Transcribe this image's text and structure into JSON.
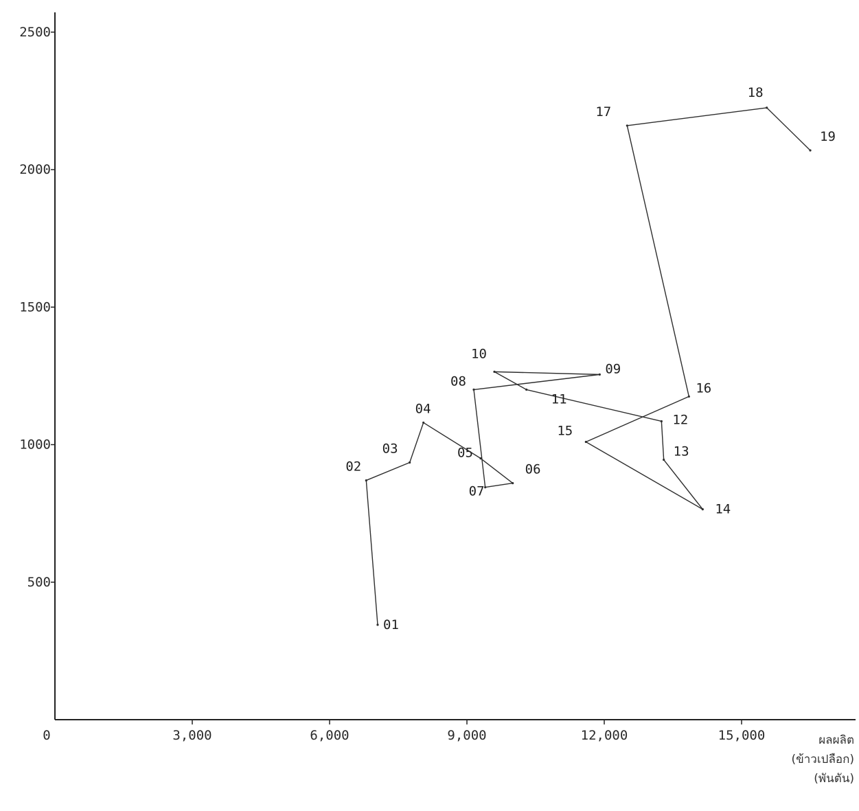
{
  "chart_data": {
    "type": "line",
    "title": "",
    "xlabel": [
      "ผลผลิต",
      "(ข้าวเปลือก)",
      "(พันตัน)"
    ],
    "ylabel": "",
    "xlim": [
      0,
      17000
    ],
    "ylim": [
      0,
      2500
    ],
    "x_ticks": [
      0,
      3000,
      6000,
      9000,
      12000,
      15000
    ],
    "x_tick_labels": [
      "0",
      "3,000",
      "6,000",
      "9,000",
      "12,000",
      "15,000"
    ],
    "y_ticks": [
      500,
      1000,
      1500,
      2000,
      2500
    ],
    "y_tick_labels": [
      "500",
      "1000",
      "1500",
      "2000",
      "2500"
    ],
    "grid": false,
    "series": [
      {
        "points": [
          {
            "label": "01",
            "x": 7050,
            "y": 345
          },
          {
            "label": "02",
            "x": 6800,
            "y": 870
          },
          {
            "label": "03",
            "x": 7750,
            "y": 935
          },
          {
            "label": "04",
            "x": 8050,
            "y": 1080
          },
          {
            "label": "05",
            "x": 9300,
            "y": 950
          },
          {
            "label": "06",
            "x": 10000,
            "y": 860
          },
          {
            "label": "07",
            "x": 9400,
            "y": 845
          },
          {
            "label": "08",
            "x": 9150,
            "y": 1200
          },
          {
            "label": "09",
            "x": 11900,
            "y": 1255
          },
          {
            "label": "10",
            "x": 9600,
            "y": 1265
          },
          {
            "label": "11",
            "x": 10300,
            "y": 1200
          },
          {
            "label": "12",
            "x": 13250,
            "y": 1085
          },
          {
            "label": "13",
            "x": 13300,
            "y": 945
          },
          {
            "label": "14",
            "x": 14150,
            "y": 765
          },
          {
            "label": "15",
            "x": 11600,
            "y": 1010
          },
          {
            "label": "16",
            "x": 13850,
            "y": 1175
          },
          {
            "label": "17",
            "x": 12500,
            "y": 2160
          },
          {
            "label": "18",
            "x": 15550,
            "y": 2225
          },
          {
            "label": "19",
            "x": 16500,
            "y": 2070
          }
        ]
      }
    ]
  }
}
